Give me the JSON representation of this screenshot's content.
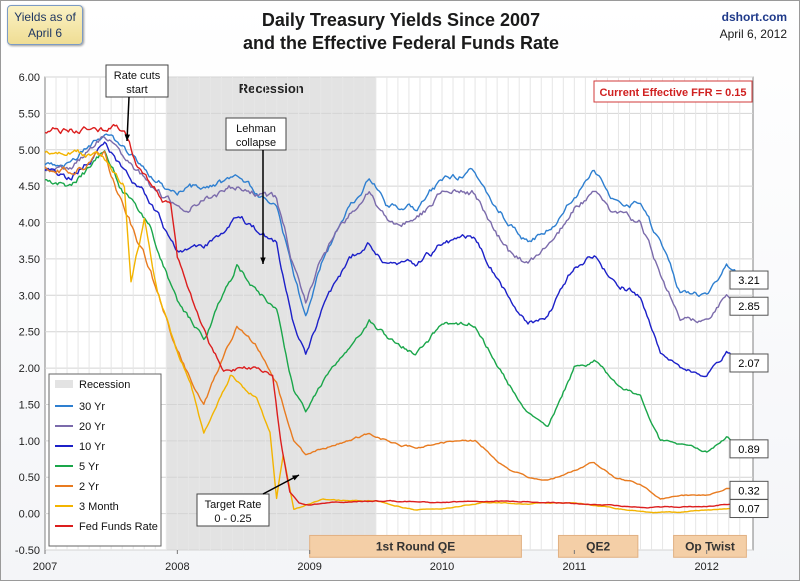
{
  "badge": {
    "line1": "Yields as of",
    "line2": "April 6"
  },
  "header": {
    "title_line1": "Daily Treasury Yields Since 2007",
    "title_line2": "and the Effective Federal Funds Rate",
    "site": "dshort.com",
    "date": "April 6, 2012"
  },
  "chart_data": {
    "type": "line",
    "title": "Daily Treasury Yields Since 2007 and the Effective Federal Funds Rate",
    "xlabel": "",
    "ylabel": "",
    "xlim": [
      2007.0,
      2012.35
    ],
    "ylim": [
      -0.5,
      6.0
    ],
    "x_ticks": [
      "2007",
      "2008",
      "2009",
      "2010",
      "2011",
      "2012"
    ],
    "y_ticks": [
      "-0.50",
      "0.00",
      "0.50",
      "1.00",
      "1.50",
      "2.00",
      "2.50",
      "3.00",
      "3.50",
      "4.00",
      "4.50",
      "5.00",
      "5.50",
      "6.00"
    ],
    "grid": true,
    "legend_position": "bottom-left",
    "recession": {
      "start": 2007.92,
      "end": 2009.5,
      "label": "Recession"
    },
    "current_ffr_label": "Current Effective FFR = 0.15",
    "shaded_bands": [
      {
        "label": "1st Round QE",
        "start": 2009.0,
        "end": 2010.6
      },
      {
        "label": "QE2",
        "start": 2010.88,
        "end": 2011.48
      },
      {
        "label": "Op Twist",
        "start": 2011.75,
        "end": 2012.3
      }
    ],
    "annotations": [
      {
        "text": [
          "Rate cuts",
          "start"
        ],
        "x": 2007.7,
        "y": 5.3
      },
      {
        "text": [
          "Lehman",
          "collapse"
        ],
        "x": 2008.71,
        "y": 3.2
      },
      {
        "text": [
          "Target Rate",
          "0 - 0.25"
        ],
        "x": 2008.95,
        "y": 0.05
      }
    ],
    "series": [
      {
        "name": "30 Yr",
        "color": "#2e7fd0",
        "end_label": "3.21",
        "x": [
          2007.0,
          2007.2,
          2007.45,
          2007.6,
          2007.8,
          2008.0,
          2008.2,
          2008.45,
          2008.6,
          2008.75,
          2008.88,
          2008.97,
          2009.1,
          2009.3,
          2009.45,
          2009.6,
          2009.8,
          2010.0,
          2010.25,
          2010.5,
          2010.65,
          2010.8,
          2011.0,
          2011.15,
          2011.3,
          2011.5,
          2011.65,
          2011.8,
          2012.0,
          2012.15,
          2012.27
        ],
        "y": [
          4.8,
          4.85,
          5.2,
          5.0,
          4.6,
          4.4,
          4.5,
          4.6,
          4.4,
          4.2,
          3.3,
          2.7,
          3.5,
          4.2,
          4.6,
          4.2,
          4.2,
          4.6,
          4.7,
          4.0,
          3.7,
          3.9,
          4.4,
          4.7,
          4.3,
          4.3,
          3.7,
          3.0,
          3.0,
          3.4,
          3.21
        ]
      },
      {
        "name": "20 Yr",
        "color": "#7b6bab",
        "end_label": "2.85",
        "x": [
          2007.0,
          2007.2,
          2007.45,
          2007.6,
          2007.8,
          2008.0,
          2008.2,
          2008.45,
          2008.6,
          2008.75,
          2008.88,
          2008.97,
          2009.1,
          2009.3,
          2009.45,
          2009.6,
          2009.8,
          2010.0,
          2010.25,
          2010.5,
          2010.65,
          2010.8,
          2011.0,
          2011.15,
          2011.3,
          2011.5,
          2011.65,
          2011.8,
          2012.0,
          2012.15,
          2012.27
        ],
        "y": [
          4.75,
          4.8,
          5.2,
          4.9,
          4.5,
          4.2,
          4.3,
          4.5,
          4.4,
          4.3,
          3.4,
          2.9,
          3.6,
          4.1,
          4.4,
          4.0,
          4.0,
          4.4,
          4.4,
          3.6,
          3.4,
          3.6,
          4.2,
          4.4,
          4.1,
          4.0,
          3.3,
          2.7,
          2.6,
          3.0,
          2.85
        ]
      },
      {
        "name": "10 Yr",
        "color": "#1c20c8",
        "end_label": "2.07",
        "x": [
          2007.0,
          2007.2,
          2007.45,
          2007.6,
          2007.8,
          2008.0,
          2008.2,
          2008.45,
          2008.6,
          2008.75,
          2008.88,
          2008.97,
          2009.1,
          2009.3,
          2009.45,
          2009.6,
          2009.8,
          2010.0,
          2010.25,
          2010.5,
          2010.65,
          2010.8,
          2011.0,
          2011.15,
          2011.3,
          2011.5,
          2011.65,
          2011.8,
          2012.0,
          2012.15,
          2012.27
        ],
        "y": [
          4.7,
          4.6,
          5.1,
          4.7,
          4.3,
          3.6,
          3.6,
          4.1,
          3.9,
          3.7,
          2.6,
          2.2,
          2.8,
          3.5,
          3.7,
          3.4,
          3.4,
          3.7,
          3.8,
          3.0,
          2.6,
          2.7,
          3.4,
          3.6,
          3.2,
          3.0,
          2.2,
          2.0,
          1.9,
          2.2,
          2.07
        ]
      },
      {
        "name": "5 Yr",
        "color": "#1aa64a",
        "end_label": "0.89",
        "x": [
          2007.0,
          2007.2,
          2007.45,
          2007.6,
          2007.8,
          2008.0,
          2008.2,
          2008.45,
          2008.6,
          2008.75,
          2008.88,
          2008.97,
          2009.1,
          2009.3,
          2009.45,
          2009.6,
          2009.8,
          2010.0,
          2010.25,
          2010.5,
          2010.65,
          2010.8,
          2011.0,
          2011.15,
          2011.3,
          2011.5,
          2011.65,
          2011.8,
          2012.0,
          2012.15,
          2012.27
        ],
        "y": [
          4.6,
          4.5,
          4.95,
          4.4,
          3.9,
          2.9,
          2.4,
          3.4,
          3.1,
          2.8,
          1.7,
          1.4,
          1.8,
          2.3,
          2.7,
          2.4,
          2.2,
          2.6,
          2.6,
          1.8,
          1.4,
          1.2,
          2.0,
          2.1,
          1.8,
          1.6,
          1.0,
          0.95,
          0.85,
          1.05,
          0.89
        ]
      },
      {
        "name": "2 Yr",
        "color": "#e87b20",
        "end_label": "0.32",
        "x": [
          2007.0,
          2007.2,
          2007.45,
          2007.6,
          2007.8,
          2008.0,
          2008.2,
          2008.45,
          2008.6,
          2008.75,
          2008.88,
          2008.97,
          2009.1,
          2009.3,
          2009.45,
          2009.6,
          2009.8,
          2010.0,
          2010.25,
          2010.5,
          2010.65,
          2010.8,
          2011.0,
          2011.15,
          2011.3,
          2011.5,
          2011.65,
          2011.8,
          2012.0,
          2012.15,
          2012.27
        ],
        "y": [
          4.8,
          4.7,
          4.95,
          4.2,
          3.3,
          2.2,
          1.5,
          2.6,
          2.3,
          1.8,
          1.0,
          0.8,
          0.9,
          1.0,
          1.1,
          1.0,
          0.9,
          1.0,
          1.0,
          0.6,
          0.5,
          0.45,
          0.6,
          0.7,
          0.5,
          0.4,
          0.2,
          0.25,
          0.25,
          0.35,
          0.32
        ]
      },
      {
        "name": "3 Month",
        "color": "#f3b400",
        "end_label": "0.07",
        "x": [
          2007.0,
          2007.2,
          2007.45,
          2007.6,
          2007.65,
          2007.75,
          2007.85,
          2008.0,
          2008.1,
          2008.2,
          2008.4,
          2008.6,
          2008.7,
          2008.75,
          2008.8,
          2008.88,
          2008.95,
          2009.1,
          2009.3,
          2009.5,
          2009.8,
          2010.0,
          2010.3,
          2010.6,
          2011.0,
          2011.4,
          2011.6,
          2011.8,
          2012.0,
          2012.27
        ],
        "y": [
          4.95,
          5.0,
          4.85,
          4.5,
          3.2,
          4.0,
          3.0,
          2.2,
          1.8,
          1.1,
          1.9,
          1.6,
          1.1,
          0.2,
          0.8,
          0.05,
          0.1,
          0.2,
          0.18,
          0.17,
          0.05,
          0.06,
          0.15,
          0.14,
          0.15,
          0.05,
          0.02,
          0.02,
          0.05,
          0.07
        ]
      },
      {
        "name": "Fed Funds Rate",
        "color": "#dc1e1e",
        "x": [
          2007.0,
          2007.2,
          2007.4,
          2007.6,
          2007.7,
          2007.8,
          2007.95,
          2008.0,
          2008.1,
          2008.25,
          2008.35,
          2008.6,
          2008.72,
          2008.78,
          2008.85,
          2008.92,
          2009.0,
          2009.1,
          2009.5,
          2010.0,
          2010.5,
          2011.0,
          2011.5,
          2012.0,
          2012.27
        ],
        "y": [
          5.25,
          5.28,
          5.26,
          5.3,
          4.8,
          4.5,
          4.2,
          3.5,
          3.0,
          2.3,
          2.0,
          2.0,
          1.9,
          1.0,
          0.3,
          0.15,
          0.12,
          0.15,
          0.18,
          0.15,
          0.18,
          0.14,
          0.09,
          0.1,
          0.15
        ]
      }
    ]
  }
}
